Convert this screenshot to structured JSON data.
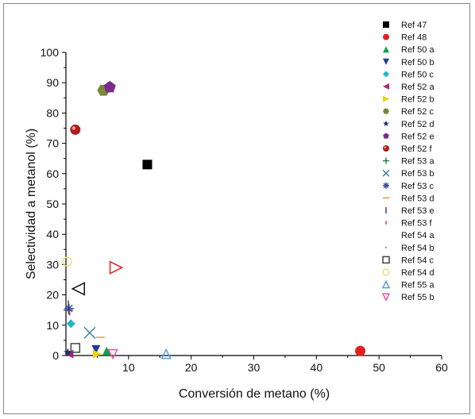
{
  "chart_data": {
    "type": "scatter",
    "title": "",
    "xlabel": "Conversión de metano (%)",
    "ylabel": "Selectividad a metanol (%)",
    "xlim": [
      0,
      60
    ],
    "ylim": [
      0,
      100
    ],
    "xticks": [
      "10",
      "20",
      "30",
      "40",
      "50",
      "60"
    ],
    "yticks": [
      "0",
      "10",
      "20",
      "30",
      "40",
      "50",
      "60",
      "70",
      "80",
      "90",
      "100"
    ],
    "grid": false,
    "legend_position": "right",
    "series": [
      {
        "name": "Ref 47",
        "marker": "square",
        "color": "#000000",
        "points": [
          [
            13,
            63
          ]
        ]
      },
      {
        "name": "Ref 48",
        "marker": "circle",
        "color": "#e02020",
        "points": [
          [
            47,
            1.5
          ]
        ]
      },
      {
        "name": "Ref 50 a",
        "marker": "triangle-up",
        "color": "#11a150",
        "points": [
          [
            6.5,
            1.5
          ]
        ]
      },
      {
        "name": "Ref 50 b",
        "marker": "triangle-down",
        "color": "#23399a",
        "points": [
          [
            4.8,
            2
          ]
        ]
      },
      {
        "name": "Ref 50 c",
        "marker": "diamond",
        "color": "#18b6c9",
        "points": [
          [
            0.8,
            10.5
          ]
        ]
      },
      {
        "name": "Ref 52 a",
        "marker": "triangle-left",
        "color": "#b5247d",
        "points": [
          [
            0.5,
            0.5
          ]
        ]
      },
      {
        "name": "Ref 52 b",
        "marker": "triangle-right",
        "color": "#ecd20f",
        "points": [
          [
            5,
            0.5
          ]
        ]
      },
      {
        "name": "Ref 52 c",
        "marker": "hexagon",
        "color": "#77893a",
        "points": [
          [
            6,
            87.5
          ]
        ]
      },
      {
        "name": "Ref 52 d",
        "marker": "star",
        "color": "#1f2a6b",
        "points": [
          [
            0.3,
            1
          ]
        ]
      },
      {
        "name": "Ref 52 e",
        "marker": "pentagon",
        "color": "#7c2a8c",
        "points": [
          [
            7,
            88.5
          ]
        ]
      },
      {
        "name": "Ref 52 f",
        "marker": "sphere",
        "color": "#b11c1c",
        "points": [
          [
            1.5,
            74.5
          ]
        ]
      },
      {
        "name": "Ref 53 a",
        "marker": "plus",
        "color": "#1d7d44",
        "points": [
          [
            0.4,
            15
          ]
        ]
      },
      {
        "name": "Ref 53 b",
        "marker": "x",
        "color": "#3b7b9b",
        "points": [
          [
            3.8,
            7.5
          ]
        ]
      },
      {
        "name": "Ref 53 c",
        "marker": "asterisk",
        "color": "#3849a4",
        "points": [
          [
            0.5,
            15.5
          ]
        ]
      },
      {
        "name": "Ref 53 d",
        "marker": "hline",
        "color": "#ee8a2c",
        "points": [
          [
            5.5,
            6
          ]
        ]
      },
      {
        "name": "Ref 53 e",
        "marker": "vline",
        "color": "#3d2c7a",
        "points": [
          [
            0.4,
            16.5
          ]
        ]
      },
      {
        "name": "Ref 53 f",
        "marker": "small-vline",
        "color": "#c8246c",
        "points": [
          [
            0.6,
            14
          ]
        ]
      },
      {
        "name": "Ref 54 a",
        "marker": "none",
        "color": "#ffffff",
        "points": []
      },
      {
        "name": "Ref 54 b",
        "marker": "dot",
        "color": "#999999",
        "points": [
          [
            1,
            11
          ]
        ]
      },
      {
        "name": "Ref 54 c",
        "marker": "open-square",
        "color": "#444444",
        "points": [
          [
            1.5,
            2.5
          ]
        ]
      },
      {
        "name": "Ref 54 d",
        "marker": "open-circle",
        "color": "#e9e080",
        "points": [
          [
            0.2,
            31
          ]
        ]
      },
      {
        "name": "Ref 55 a",
        "marker": "open-triangle-up",
        "color": "#5b9bd5",
        "points": [
          [
            16,
            0.5
          ]
        ]
      },
      {
        "name": "Ref 55 b",
        "marker": "open-triangle-down",
        "color": "#e45a9b",
        "points": [
          [
            7.5,
            0.5
          ]
        ]
      },
      {
        "name": "",
        "marker": "open-triangle-left",
        "color": "#111111",
        "points": [
          [
            2,
            22
          ]
        ]
      },
      {
        "name": "",
        "marker": "open-triangle-right",
        "color": "#e02020",
        "points": [
          [
            8,
            29
          ]
        ]
      }
    ]
  }
}
